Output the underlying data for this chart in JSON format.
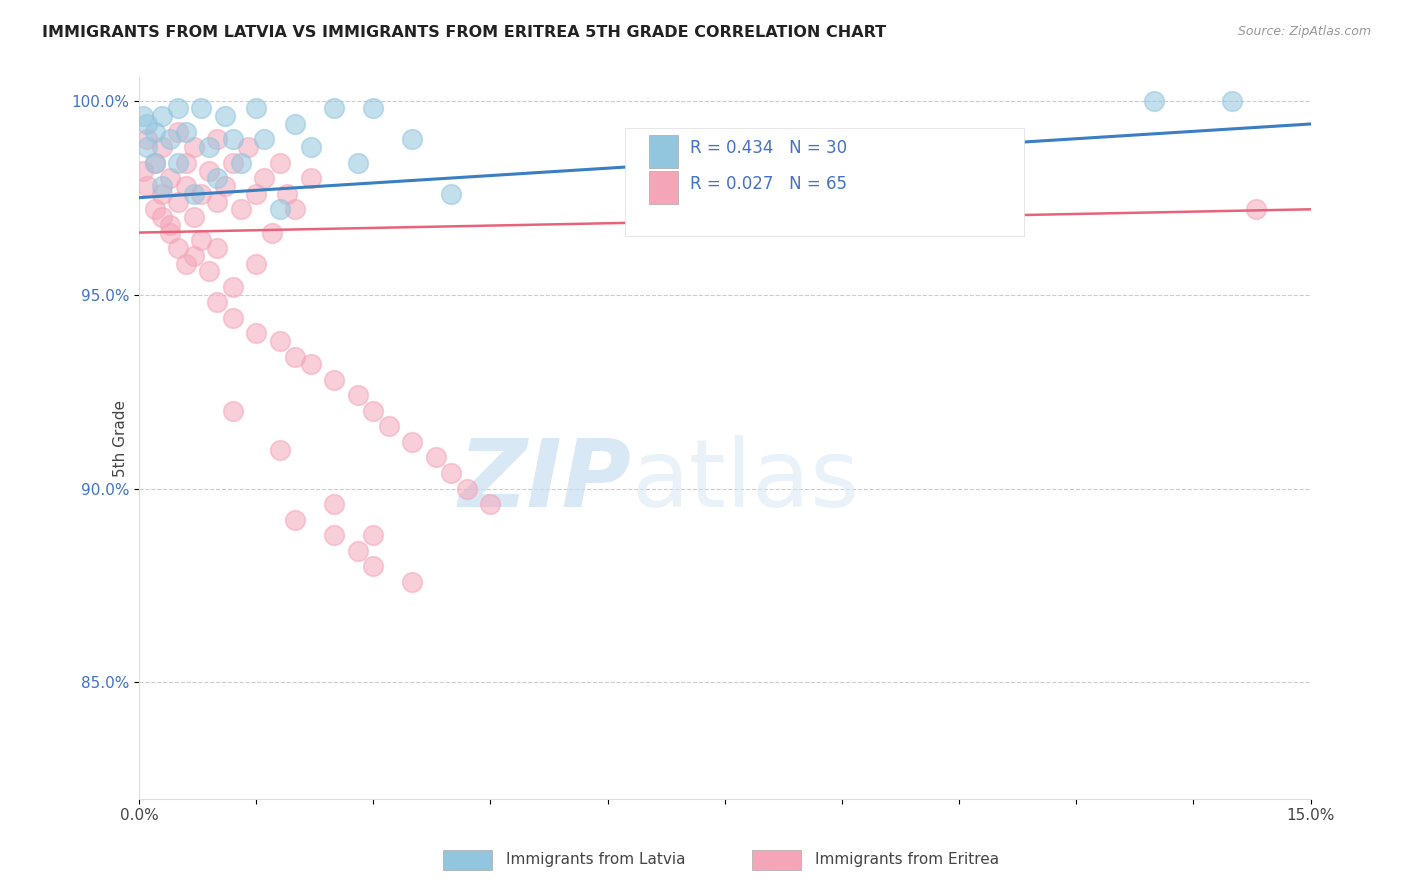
{
  "title": "IMMIGRANTS FROM LATVIA VS IMMIGRANTS FROM ERITREA 5TH GRADE CORRELATION CHART",
  "source": "Source: ZipAtlas.com",
  "ylabel": "5th Grade",
  "legend_latvia_r": "R = 0.434",
  "legend_latvia_n": "N = 30",
  "legend_eritrea_r": "R = 0.027",
  "legend_eritrea_n": "N = 65",
  "legend_label_latvia": "Immigrants from Latvia",
  "legend_label_eritrea": "Immigrants from Eritrea",
  "color_latvia": "#92c5de",
  "color_eritrea": "#f4a6b8",
  "color_line_latvia": "#3a7fc1",
  "color_line_eritrea": "#e8637a",
  "xlim": [
    0.0,
    0.15
  ],
  "ylim": [
    0.82,
    1.006
  ],
  "yticks": [
    0.85,
    0.9,
    0.95,
    1.0
  ],
  "latvia_x": [
    0.0005,
    0.001,
    0.001,
    0.002,
    0.002,
    0.003,
    0.003,
    0.004,
    0.005,
    0.005,
    0.006,
    0.007,
    0.008,
    0.009,
    0.01,
    0.011,
    0.012,
    0.013,
    0.015,
    0.016,
    0.018,
    0.02,
    0.022,
    0.025,
    0.028,
    0.03,
    0.035,
    0.04,
    0.13,
    0.14
  ],
  "latvia_y": [
    0.996,
    0.988,
    0.994,
    0.984,
    0.992,
    0.978,
    0.996,
    0.99,
    0.998,
    0.984,
    0.992,
    0.976,
    0.998,
    0.988,
    0.98,
    0.996,
    0.99,
    0.984,
    0.998,
    0.99,
    0.972,
    0.994,
    0.988,
    0.998,
    0.984,
    0.998,
    0.99,
    0.976,
    1.0,
    1.0
  ],
  "eritrea_x": [
    0.0005,
    0.001,
    0.001,
    0.002,
    0.002,
    0.003,
    0.003,
    0.004,
    0.004,
    0.005,
    0.005,
    0.006,
    0.006,
    0.007,
    0.007,
    0.008,
    0.009,
    0.01,
    0.01,
    0.011,
    0.012,
    0.013,
    0.014,
    0.015,
    0.016,
    0.017,
    0.018,
    0.019,
    0.02,
    0.022,
    0.003,
    0.004,
    0.005,
    0.006,
    0.007,
    0.008,
    0.009,
    0.01,
    0.012,
    0.015,
    0.01,
    0.012,
    0.015,
    0.018,
    0.02,
    0.022,
    0.025,
    0.028,
    0.03,
    0.032,
    0.035,
    0.038,
    0.04,
    0.042,
    0.045,
    0.02,
    0.025,
    0.028,
    0.03,
    0.035,
    0.012,
    0.018,
    0.025,
    0.03,
    0.143
  ],
  "eritrea_y": [
    0.982,
    0.978,
    0.99,
    0.972,
    0.984,
    0.976,
    0.988,
    0.968,
    0.98,
    0.974,
    0.992,
    0.978,
    0.984,
    0.97,
    0.988,
    0.976,
    0.982,
    0.974,
    0.99,
    0.978,
    0.984,
    0.972,
    0.988,
    0.976,
    0.98,
    0.966,
    0.984,
    0.976,
    0.972,
    0.98,
    0.97,
    0.966,
    0.962,
    0.958,
    0.96,
    0.964,
    0.956,
    0.962,
    0.952,
    0.958,
    0.948,
    0.944,
    0.94,
    0.938,
    0.934,
    0.932,
    0.928,
    0.924,
    0.92,
    0.916,
    0.912,
    0.908,
    0.904,
    0.9,
    0.896,
    0.892,
    0.888,
    0.884,
    0.88,
    0.876,
    0.92,
    0.91,
    0.896,
    0.888,
    0.972
  ],
  "line_latvia_x0": 0.0,
  "line_latvia_y0": 0.975,
  "line_latvia_x1": 0.15,
  "line_latvia_y1": 0.994,
  "line_eritrea_x0": 0.0,
  "line_eritrea_y0": 0.966,
  "line_eritrea_x1": 0.15,
  "line_eritrea_y1": 0.972
}
